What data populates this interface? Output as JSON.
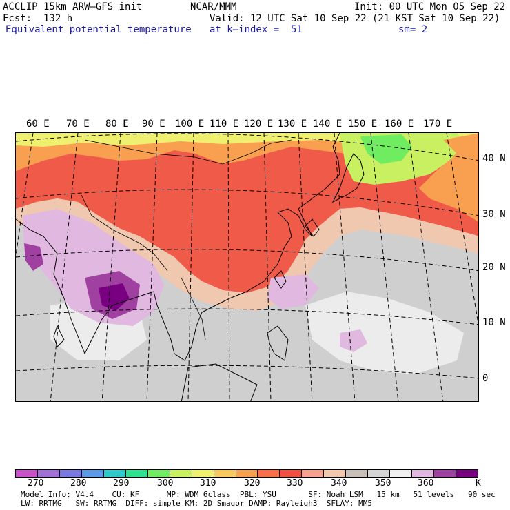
{
  "header": {
    "model_line": "ACCLIP 15km ARW–GFS init",
    "fcst_line": "Fcst:  132 h",
    "field_name": "Equivalent potential temperature",
    "center": "NCAR/MMM",
    "valid_line": "Valid: 12 UTC Sat 10 Sep 22 (21 KST Sat 10 Sep 22)",
    "level_line": "at k–index =  51",
    "init_line": "Init: 00 UTC Mon 05 Sep 22",
    "smooth_line": "sm= 2"
  },
  "map": {
    "lon_labels": [
      "60 E",
      "70 E",
      "80 E",
      "90 E",
      "100 E",
      "110 E",
      "120 E",
      "130 E",
      "140 E",
      "150 E",
      "160 E",
      "170 E"
    ],
    "lat_labels": [
      "40 N",
      "30 N",
      "20 N",
      "10 N",
      "0"
    ]
  },
  "colorbar": {
    "unit": "K",
    "labels": [
      "270",
      "280",
      "290",
      "300",
      "310",
      "320",
      "330",
      "340",
      "350",
      "360"
    ],
    "colors": [
      "#c850c8",
      "#a070d8",
      "#7878e0",
      "#5a9ae8",
      "#30c8c8",
      "#30e090",
      "#70ec60",
      "#c8f060",
      "#f0f070",
      "#f8c860",
      "#f8a050",
      "#f87048",
      "#f05040",
      "#f8a090",
      "#f0c8b0",
      "#c8c0b8",
      "#d4d4d4",
      "#f0f0f0",
      "#e0b8e0",
      "#a040a0",
      "#780080"
    ]
  },
  "model_info": {
    "line1": "Model Info: V4.4    CU: KF      MP: WDM 6class  PBL: YSU       SF: Noah LSM   15 km   51 levels   90 sec",
    "line2": "LW: RRTMG   SW: RRTMG  DIFF: simple KM: 2D Smagor DAMP: Rayleigh3  SFLAY: MM5"
  }
}
